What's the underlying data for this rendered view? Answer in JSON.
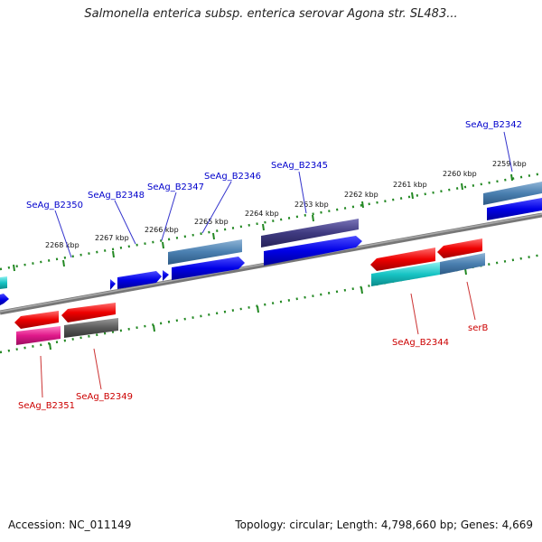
{
  "title": "Salmonella enterica subsp. enterica serovar Agona str. SL483...",
  "footer": {
    "accession": "Accession: NC_011149",
    "summary": "Topology: circular; Length: 4,798,660 bp; Genes: 4,669"
  },
  "colors": {
    "forward_label": "#0000cc",
    "reverse_label": "#cc0000",
    "scale_dots": "#228822",
    "backbone": "#777777",
    "cds_blue": "#0000e6",
    "steel_blue": "#4a7fb0",
    "dark_purple": "#3f3a80",
    "red": "#ee0000",
    "cyan": "#17c4c4",
    "magenta": "#e0188a",
    "gray": "#5a5a5a"
  },
  "scale_labels": [
    "2259 kbp",
    "2260 kbp",
    "2261 kbp",
    "2262 kbp",
    "2263 kbp",
    "2264 kbp",
    "2265 kbp",
    "2266 kbp",
    "2267 kbp",
    "2268 kbp"
  ],
  "forward_genes": [
    "SeAg_B2342",
    "SeAg_B2345",
    "SeAg_B2346",
    "SeAg_B2347",
    "SeAg_B2348",
    "SeAg_B2350"
  ],
  "reverse_genes": [
    "SeAg_B2344",
    "serB",
    "SeAg_B2351",
    "SeAg_B2349"
  ]
}
